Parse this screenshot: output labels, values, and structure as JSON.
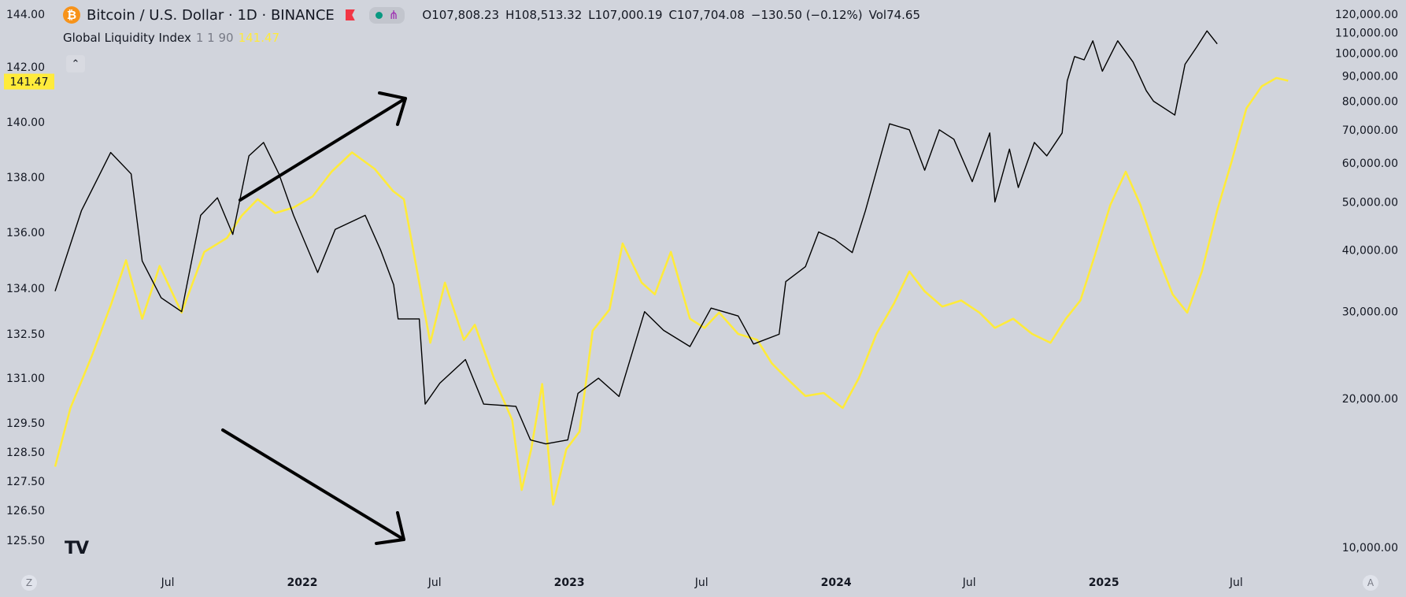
{
  "header": {
    "coin_icon_glyph": "₿",
    "symbol_title": "Bitcoin / U.S. Dollar · 1D · BINANCE",
    "flag_icon": "flag-icon",
    "status_icons": [
      "dot-icon",
      "share-icon"
    ],
    "ohlc": {
      "open_label": "O",
      "open": "107,808.23",
      "high_label": "H",
      "high": "108,513.32",
      "low_label": "L",
      "low": "107,000.19",
      "close_label": "C",
      "close": "107,704.08",
      "change": "−130.50 (−0.12%)",
      "vol_label": "Vol",
      "vol": "74.65"
    }
  },
  "indicator": {
    "name": "Global Liquidity Index",
    "params": "1 1 90",
    "value": "141.47"
  },
  "collapse_glyph": "⌃",
  "logo_text": "TV",
  "corner_left": "Z",
  "corner_right": "A",
  "colors": {
    "background": "#d1d4dc",
    "btc_line": "#000000",
    "gli_line": "#ffeb3b",
    "gli_badge": "#ffeb3b",
    "arrows": "#000000"
  },
  "chart_data": {
    "type": "line",
    "x_axis": {
      "ticks": [
        "Jul",
        "2022",
        "Jul",
        "2023",
        "Jul",
        "2024",
        "Jul",
        "2025",
        "Jul"
      ],
      "range": [
        "2021-01-28",
        "2025-09-14"
      ]
    },
    "y_left": {
      "ticks": [
        "125.50",
        "126.50",
        "127.50",
        "128.50",
        "129.50",
        "131.00",
        "132.50",
        "134.00",
        "136.00",
        "138.00",
        "140.00",
        "142.00",
        "144.00"
      ],
      "range": [
        124.0,
        144.5
      ],
      "current_value_label": "141.47"
    },
    "y_right": {
      "ticks": [
        "10,000.00",
        "20,000.00",
        "30,000.00",
        "40,000.00",
        "50,000.00",
        "60,000.00",
        "70,000.00",
        "80,000.00",
        "90,000.00",
        "100,000.00",
        "110,000.00",
        "120,000.00"
      ],
      "range": [
        7000,
        120000
      ]
    },
    "series": [
      {
        "axis": "right",
        "color": "#000000",
        "x": [
          "2021-01-28",
          "2021-03-05",
          "2021-04-14",
          "2021-05-12",
          "2021-05-27",
          "2021-06-22",
          "2021-07-20",
          "2021-08-15",
          "2021-09-07",
          "2021-09-28",
          "2021-10-20",
          "2021-11-09",
          "2021-11-30",
          "2021-12-20",
          "2022-01-22",
          "2022-02-15",
          "2022-03-28",
          "2022-04-18",
          "2022-05-06",
          "2022-05-12",
          "2022-06-10",
          "2022-06-18",
          "2022-07-08",
          "2022-08-12",
          "2022-09-06",
          "2022-10-20",
          "2022-11-09",
          "2022-11-30",
          "2022-12-30",
          "2023-01-13",
          "2023-02-10",
          "2023-03-10",
          "2023-04-14",
          "2023-05-10",
          "2023-06-15",
          "2023-07-14",
          "2023-08-20",
          "2023-09-10",
          "2023-10-15",
          "2023-10-24",
          "2023-11-20",
          "2023-12-08",
          "2023-12-30",
          "2024-01-23",
          "2024-02-10",
          "2024-03-14",
          "2024-04-10",
          "2024-05-01",
          "2024-05-21",
          "2024-06-10",
          "2024-07-05",
          "2024-07-29",
          "2024-08-05",
          "2024-08-25",
          "2024-09-06",
          "2024-09-28",
          "2024-10-15",
          "2024-11-05",
          "2024-11-12",
          "2024-11-22",
          "2024-12-05",
          "2024-12-17",
          "2024-12-30",
          "2025-01-20",
          "2025-02-10",
          "2025-02-28",
          "2025-03-10",
          "2025-04-08",
          "2025-04-22",
          "2025-05-08",
          "2025-05-22",
          "2025-06-05"
        ],
        "values": [
          33000,
          48000,
          63000,
          57000,
          38000,
          32000,
          30000,
          47000,
          51000,
          43000,
          62000,
          66000,
          57000,
          47000,
          36000,
          44000,
          47000,
          40000,
          34000,
          29000,
          29000,
          19500,
          21500,
          24000,
          19500,
          19300,
          16500,
          16200,
          16500,
          20500,
          22000,
          20200,
          30000,
          27500,
          25500,
          30500,
          29400,
          25800,
          27000,
          34500,
          37000,
          43500,
          42000,
          39500,
          48000,
          72000,
          70000,
          58000,
          70000,
          67000,
          55000,
          69000,
          50000,
          64000,
          53500,
          66000,
          62000,
          69000,
          88000,
          98500,
          97000,
          106000,
          92000,
          106000,
          96000,
          84000,
          80000,
          75000,
          95000,
          103000,
          111000,
          104500
        ]
      },
      {
        "axis": "left",
        "color": "#ffeb3b",
        "x": [
          "2021-01-28",
          "2021-02-18",
          "2021-03-20",
          "2021-04-15",
          "2021-05-05",
          "2021-05-27",
          "2021-06-20",
          "2021-07-20",
          "2021-08-20",
          "2021-09-20",
          "2021-10-10",
          "2021-11-01",
          "2021-11-25",
          "2021-12-20",
          "2022-01-15",
          "2022-02-10",
          "2022-03-10",
          "2022-04-10",
          "2022-05-05",
          "2022-05-20",
          "2022-06-25",
          "2022-07-15",
          "2022-08-10",
          "2022-08-25",
          "2022-09-20",
          "2022-10-15",
          "2022-10-28",
          "2022-11-10",
          "2022-11-25",
          "2022-12-10",
          "2022-12-28",
          "2023-01-15",
          "2023-02-02",
          "2023-02-25",
          "2023-03-15",
          "2023-04-10",
          "2023-04-28",
          "2023-05-20",
          "2023-06-15",
          "2023-07-05",
          "2023-07-25",
          "2023-08-20",
          "2023-09-15",
          "2023-10-05",
          "2023-10-25",
          "2023-11-20",
          "2023-12-15",
          "2024-01-10",
          "2024-02-01",
          "2024-02-25",
          "2024-03-20",
          "2024-04-10",
          "2024-05-01",
          "2024-05-25",
          "2024-06-20",
          "2024-07-15",
          "2024-08-05",
          "2024-08-30",
          "2024-09-25",
          "2024-10-20",
          "2024-11-10",
          "2024-11-30",
          "2024-12-20",
          "2025-01-10",
          "2025-01-31",
          "2025-02-20",
          "2025-03-15",
          "2025-04-05",
          "2025-04-25",
          "2025-05-15",
          "2025-06-05",
          "2025-06-25",
          "2025-07-15",
          "2025-08-05",
          "2025-08-25",
          "2025-09-10"
        ],
        "values": [
          128.0,
          130.0,
          131.8,
          133.5,
          135.0,
          133.0,
          134.8,
          133.2,
          135.3,
          135.8,
          136.6,
          137.2,
          136.7,
          136.9,
          137.3,
          138.2,
          138.9,
          138.3,
          137.5,
          137.2,
          132.2,
          134.2,
          132.3,
          132.8,
          131.0,
          129.6,
          127.2,
          128.6,
          130.8,
          126.7,
          128.6,
          129.2,
          132.6,
          133.3,
          135.6,
          134.2,
          133.8,
          135.3,
          133.0,
          132.7,
          133.2,
          132.5,
          132.3,
          131.5,
          131.0,
          130.4,
          130.5,
          130.0,
          131.0,
          132.5,
          133.5,
          134.6,
          133.9,
          133.4,
          133.6,
          133.2,
          132.7,
          133.0,
          132.5,
          132.2,
          133.0,
          133.6,
          135.2,
          137.0,
          138.2,
          137.0,
          135.2,
          133.8,
          133.2,
          134.6,
          136.8,
          138.6,
          140.5,
          141.3,
          141.6,
          141.5
        ]
      }
    ]
  }
}
